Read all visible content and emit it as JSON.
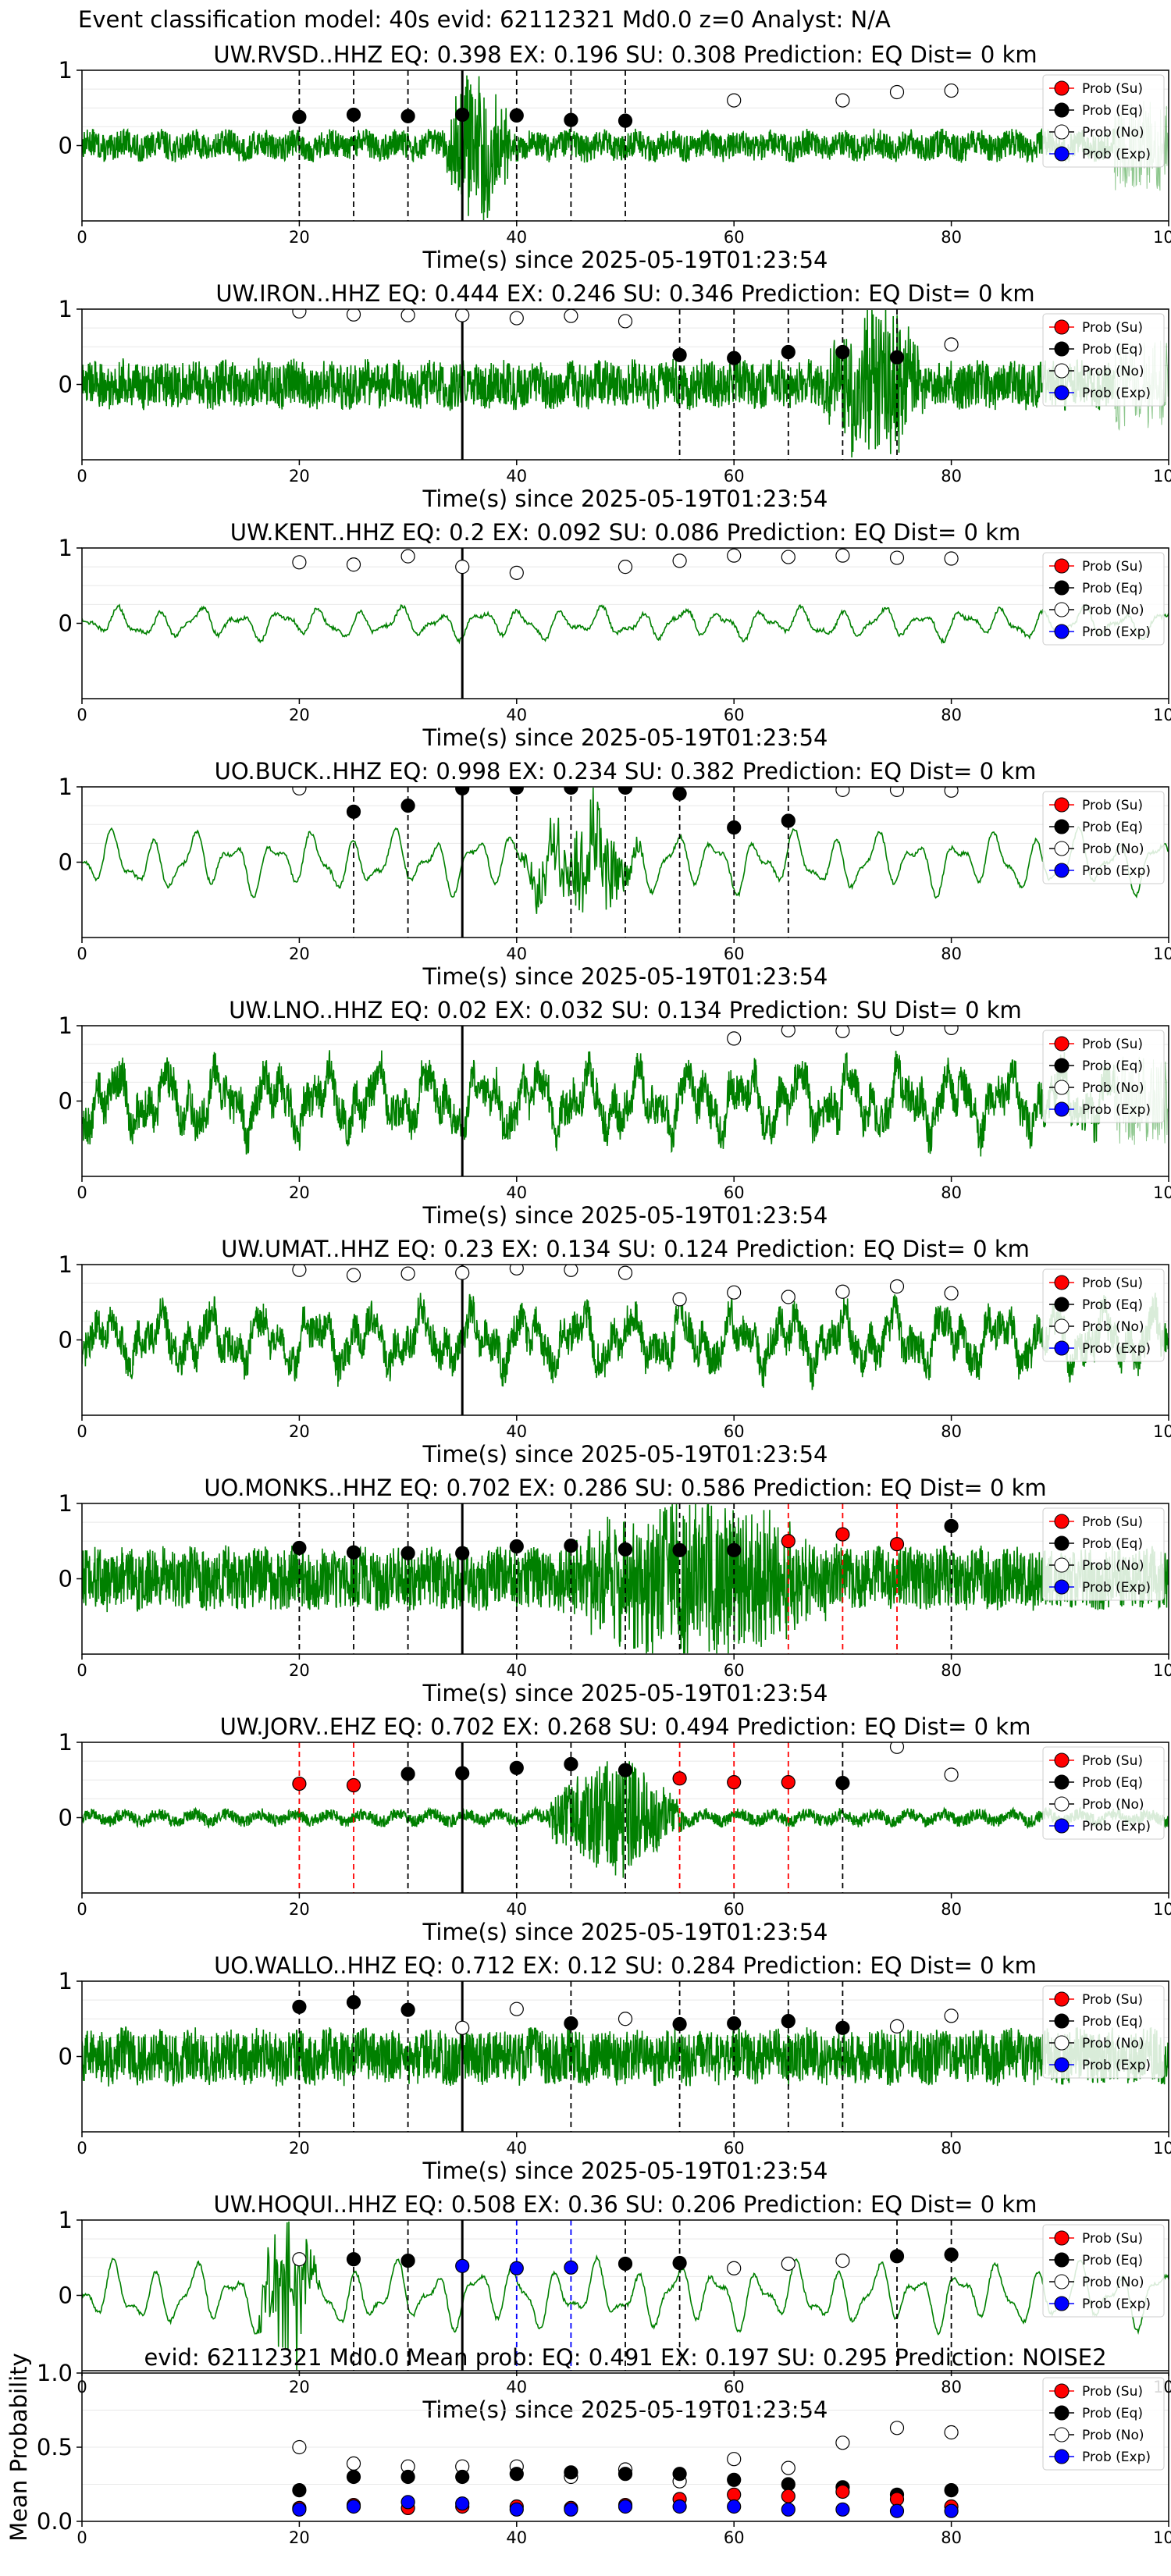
{
  "figure_title": "Event classification model: 40s evid: 62112321 Md0.0 z=0 Analyst: N/A",
  "legend_labels": [
    "Prob (Su)",
    "Prob (Eq)",
    "Prob (No)",
    "Prob (Exp)"
  ],
  "colors": {
    "waveform": "#008000",
    "su": "#ff0000",
    "eq": "#000000",
    "no": "#ffffff",
    "exp": "#0000ff",
    "pick_line": "#000000"
  },
  "chart_data": [
    {
      "type": "line",
      "title": "UW.RVSD..HHZ   EQ: 0.398  EX: 0.196  SU: 0.308   Prediction: EQ    Dist= 0 km",
      "xlabel": "Time(s) since 2025-05-19T01:23:54",
      "xlim": [
        0,
        100
      ],
      "ylim": [
        -1,
        1
      ],
      "xticks": [
        "0",
        "20",
        "40",
        "60",
        "80",
        "100"
      ],
      "yticks": [
        "1",
        "0"
      ],
      "grid": true,
      "legend_position": "upper-right",
      "pick_time": 35,
      "waveform": {
        "style": "noisy",
        "amplitude": 0.18,
        "burst_start": 33,
        "burst_end": 40,
        "burst_amplitude": 0.95,
        "noise_end": 95
      },
      "points": [
        {
          "x": 20,
          "y": 0.38,
          "class": "eq"
        },
        {
          "x": 25,
          "y": 0.41,
          "class": "eq"
        },
        {
          "x": 30,
          "y": 0.39,
          "class": "eq"
        },
        {
          "x": 35,
          "y": 0.41,
          "class": "eq"
        },
        {
          "x": 40,
          "y": 0.4,
          "class": "eq"
        },
        {
          "x": 45,
          "y": 0.34,
          "class": "eq"
        },
        {
          "x": 50,
          "y": 0.33,
          "class": "eq"
        },
        {
          "x": 60,
          "y": 0.6,
          "class": "no"
        },
        {
          "x": 70,
          "y": 0.6,
          "class": "no"
        },
        {
          "x": 75,
          "y": 0.71,
          "class": "no"
        },
        {
          "x": 80,
          "y": 0.73,
          "class": "no"
        }
      ]
    },
    {
      "type": "line",
      "title": "UW.IRON..HHZ   EQ: 0.444  EX: 0.246  SU: 0.346   Prediction: EQ    Dist= 0 km",
      "xlabel": "Time(s) since 2025-05-19T01:23:54",
      "xlim": [
        0,
        100
      ],
      "ylim": [
        -1,
        1
      ],
      "xticks": [
        "0",
        "20",
        "40",
        "60",
        "80",
        "100"
      ],
      "yticks": [
        "1",
        "0"
      ],
      "grid": true,
      "legend_position": "upper-right",
      "pick_time": 35,
      "waveform": {
        "style": "noisy",
        "amplitude": 0.3,
        "burst_start": 68,
        "burst_end": 78,
        "burst_amplitude": 0.9,
        "noise_end": 95
      },
      "points": [
        {
          "x": 20,
          "y": 0.97,
          "class": "no"
        },
        {
          "x": 25,
          "y": 0.93,
          "class": "no"
        },
        {
          "x": 30,
          "y": 0.92,
          "class": "no"
        },
        {
          "x": 35,
          "y": 0.92,
          "class": "no"
        },
        {
          "x": 40,
          "y": 0.88,
          "class": "no"
        },
        {
          "x": 45,
          "y": 0.91,
          "class": "no"
        },
        {
          "x": 50,
          "y": 0.84,
          "class": "no"
        },
        {
          "x": 55,
          "y": 0.39,
          "class": "eq"
        },
        {
          "x": 60,
          "y": 0.35,
          "class": "eq"
        },
        {
          "x": 65,
          "y": 0.43,
          "class": "eq"
        },
        {
          "x": 70,
          "y": 0.43,
          "class": "eq"
        },
        {
          "x": 75,
          "y": 0.36,
          "class": "eq"
        },
        {
          "x": 80,
          "y": 0.53,
          "class": "no"
        }
      ]
    },
    {
      "type": "line",
      "title": "UW.KENT..HHZ   EQ: 0.2  EX: 0.092  SU: 0.086   Prediction: EQ    Dist= 0 km",
      "xlabel": "Time(s) since 2025-05-19T01:23:54",
      "xlim": [
        0,
        100
      ],
      "ylim": [
        -1,
        1
      ],
      "xticks": [
        "0",
        "20",
        "40",
        "60",
        "80",
        "100"
      ],
      "yticks": [
        "1",
        "0"
      ],
      "grid": true,
      "legend_position": "upper-right",
      "pick_time": 35,
      "waveform": {
        "style": "smooth",
        "amplitude": 0.22,
        "burst_start": 0,
        "burst_end": 0,
        "burst_amplitude": 0,
        "noise_end": 100
      },
      "points": [
        {
          "x": 20,
          "y": 0.81,
          "class": "no"
        },
        {
          "x": 25,
          "y": 0.78,
          "class": "no"
        },
        {
          "x": 30,
          "y": 0.89,
          "class": "no"
        },
        {
          "x": 35,
          "y": 0.75,
          "class": "no"
        },
        {
          "x": 40,
          "y": 0.67,
          "class": "no"
        },
        {
          "x": 50,
          "y": 0.75,
          "class": "no"
        },
        {
          "x": 55,
          "y": 0.83,
          "class": "no"
        },
        {
          "x": 60,
          "y": 0.9,
          "class": "no"
        },
        {
          "x": 65,
          "y": 0.88,
          "class": "no"
        },
        {
          "x": 70,
          "y": 0.9,
          "class": "no"
        },
        {
          "x": 75,
          "y": 0.87,
          "class": "no"
        },
        {
          "x": 80,
          "y": 0.86,
          "class": "no"
        }
      ]
    },
    {
      "type": "line",
      "title": "UO.BUCK..HHZ   EQ: 0.998  EX: 0.234  SU: 0.382   Prediction: EQ    Dist= 0 km",
      "xlabel": "Time(s) since 2025-05-19T01:23:54",
      "xlim": [
        0,
        100
      ],
      "ylim": [
        -1,
        1
      ],
      "xticks": [
        "0",
        "20",
        "40",
        "60",
        "80",
        "100"
      ],
      "yticks": [
        "1",
        "0"
      ],
      "grid": true,
      "legend_position": "upper-right",
      "pick_time": 35,
      "waveform": {
        "style": "smooth",
        "amplitude": 0.42,
        "burst_start": 40,
        "burst_end": 52,
        "burst_amplitude": 0.6,
        "noise_end": 100
      },
      "points": [
        {
          "x": 20,
          "y": 0.98,
          "class": "no"
        },
        {
          "x": 25,
          "y": 0.67,
          "class": "eq"
        },
        {
          "x": 30,
          "y": 0.75,
          "class": "eq"
        },
        {
          "x": 35,
          "y": 0.98,
          "class": "eq"
        },
        {
          "x": 40,
          "y": 0.99,
          "class": "eq"
        },
        {
          "x": 45,
          "y": 0.99,
          "class": "eq"
        },
        {
          "x": 50,
          "y": 0.99,
          "class": "eq"
        },
        {
          "x": 55,
          "y": 0.91,
          "class": "eq"
        },
        {
          "x": 60,
          "y": 0.46,
          "class": "eq"
        },
        {
          "x": 65,
          "y": 0.55,
          "class": "eq"
        },
        {
          "x": 70,
          "y": 0.96,
          "class": "no"
        },
        {
          "x": 75,
          "y": 0.96,
          "class": "no"
        },
        {
          "x": 80,
          "y": 0.95,
          "class": "no"
        }
      ]
    },
    {
      "type": "line",
      "title": "UW.LNO..HHZ   EQ: 0.02  EX: 0.032  SU: 0.134   Prediction: SU    Dist= 0 km",
      "xlabel": "Time(s) since 2025-05-19T01:23:54",
      "xlim": [
        0,
        100
      ],
      "ylim": [
        -1,
        1
      ],
      "xticks": [
        "0",
        "20",
        "40",
        "60",
        "80",
        "100"
      ],
      "yticks": [
        "1",
        "0"
      ],
      "grid": true,
      "legend_position": "upper-right",
      "pick_time": 35,
      "waveform": {
        "style": "rough",
        "amplitude": 0.55,
        "burst_start": 0,
        "burst_end": 0,
        "burst_amplitude": 0,
        "noise_end": 95
      },
      "points": [
        {
          "x": 60,
          "y": 0.83,
          "class": "no"
        },
        {
          "x": 65,
          "y": 0.94,
          "class": "no"
        },
        {
          "x": 70,
          "y": 0.93,
          "class": "no"
        },
        {
          "x": 75,
          "y": 0.96,
          "class": "no"
        },
        {
          "x": 80,
          "y": 0.97,
          "class": "no"
        }
      ]
    },
    {
      "type": "line",
      "title": "UW.UMAT..HHZ   EQ: 0.23  EX: 0.134  SU: 0.124   Prediction: EQ    Dist= 0 km",
      "xlabel": "Time(s) since 2025-05-19T01:23:54",
      "xlim": [
        0,
        100
      ],
      "ylim": [
        -1,
        1
      ],
      "xticks": [
        "0",
        "20",
        "40",
        "60",
        "80",
        "100"
      ],
      "yticks": [
        "1",
        "0"
      ],
      "grid": true,
      "legend_position": "upper-right",
      "pick_time": 35,
      "waveform": {
        "style": "rough",
        "amplitude": 0.5,
        "burst_start": 0,
        "burst_end": 0,
        "burst_amplitude": 0,
        "noise_end": 100
      },
      "points": [
        {
          "x": 20,
          "y": 0.93,
          "class": "no"
        },
        {
          "x": 25,
          "y": 0.86,
          "class": "no"
        },
        {
          "x": 30,
          "y": 0.88,
          "class": "no"
        },
        {
          "x": 35,
          "y": 0.89,
          "class": "no"
        },
        {
          "x": 40,
          "y": 0.95,
          "class": "no"
        },
        {
          "x": 45,
          "y": 0.93,
          "class": "no"
        },
        {
          "x": 50,
          "y": 0.89,
          "class": "no"
        },
        {
          "x": 55,
          "y": 0.54,
          "class": "no"
        },
        {
          "x": 60,
          "y": 0.63,
          "class": "no"
        },
        {
          "x": 65,
          "y": 0.57,
          "class": "no"
        },
        {
          "x": 70,
          "y": 0.64,
          "class": "no"
        },
        {
          "x": 75,
          "y": 0.71,
          "class": "no"
        },
        {
          "x": 80,
          "y": 0.62,
          "class": "no"
        }
      ]
    },
    {
      "type": "line",
      "title": "UO.MONKS..HHZ   EQ: 0.702  EX: 0.286  SU: 0.586   Prediction: EQ    Dist= 0 km",
      "xlabel": "Time(s) since 2025-05-19T01:23:54",
      "xlim": [
        0,
        100
      ],
      "ylim": [
        -1,
        1
      ],
      "xticks": [
        "0",
        "20",
        "40",
        "60",
        "80",
        "100"
      ],
      "yticks": [
        "1",
        "0"
      ],
      "grid": true,
      "legend_position": "upper-right",
      "pick_time": 35,
      "waveform": {
        "style": "noisy",
        "amplitude": 0.4,
        "burst_start": 43,
        "burst_end": 70,
        "burst_amplitude": 0.85,
        "noise_end": 100
      },
      "points": [
        {
          "x": 20,
          "y": 0.41,
          "class": "eq"
        },
        {
          "x": 25,
          "y": 0.35,
          "class": "eq"
        },
        {
          "x": 30,
          "y": 0.34,
          "class": "eq"
        },
        {
          "x": 35,
          "y": 0.34,
          "class": "eq"
        },
        {
          "x": 40,
          "y": 0.43,
          "class": "eq"
        },
        {
          "x": 45,
          "y": 0.44,
          "class": "eq"
        },
        {
          "x": 50,
          "y": 0.39,
          "class": "eq"
        },
        {
          "x": 55,
          "y": 0.38,
          "class": "eq"
        },
        {
          "x": 60,
          "y": 0.38,
          "class": "eq"
        },
        {
          "x": 65,
          "y": 0.5,
          "class": "su"
        },
        {
          "x": 70,
          "y": 0.59,
          "class": "su"
        },
        {
          "x": 75,
          "y": 0.46,
          "class": "su"
        },
        {
          "x": 80,
          "y": 0.7,
          "class": "eq"
        }
      ]
    },
    {
      "type": "line",
      "title": "UW.JORV..EHZ   EQ: 0.702  EX: 0.268  SU: 0.494   Prediction: EQ    Dist= 0 km",
      "xlabel": "Time(s) since 2025-05-19T01:23:54",
      "xlim": [
        0,
        100
      ],
      "ylim": [
        -1,
        1
      ],
      "xticks": [
        "0",
        "20",
        "40",
        "60",
        "80",
        "100"
      ],
      "yticks": [
        "1",
        "0"
      ],
      "grid": true,
      "legend_position": "upper-right",
      "pick_time": 35,
      "waveform": {
        "style": "noisy",
        "amplitude": 0.08,
        "burst_start": 42,
        "burst_end": 56,
        "burst_amplitude": 0.75,
        "noise_end": 100
      },
      "points": [
        {
          "x": 20,
          "y": 0.45,
          "class": "su"
        },
        {
          "x": 25,
          "y": 0.43,
          "class": "su"
        },
        {
          "x": 30,
          "y": 0.58,
          "class": "eq"
        },
        {
          "x": 35,
          "y": 0.59,
          "class": "eq"
        },
        {
          "x": 40,
          "y": 0.66,
          "class": "eq"
        },
        {
          "x": 45,
          "y": 0.71,
          "class": "eq"
        },
        {
          "x": 50,
          "y": 0.63,
          "class": "eq"
        },
        {
          "x": 55,
          "y": 0.52,
          "class": "su"
        },
        {
          "x": 60,
          "y": 0.47,
          "class": "su"
        },
        {
          "x": 65,
          "y": 0.47,
          "class": "su"
        },
        {
          "x": 70,
          "y": 0.46,
          "class": "eq"
        },
        {
          "x": 75,
          "y": 0.94,
          "class": "no"
        },
        {
          "x": 80,
          "y": 0.57,
          "class": "no"
        }
      ]
    },
    {
      "type": "line",
      "title": "UO.WALLO..HHZ   EQ: 0.712  EX: 0.12  SU: 0.284   Prediction: EQ    Dist= 0 km",
      "xlabel": "Time(s) since 2025-05-19T01:23:54",
      "xlim": [
        0,
        100
      ],
      "ylim": [
        -1,
        1
      ],
      "xticks": [
        "0",
        "20",
        "40",
        "60",
        "80",
        "100"
      ],
      "yticks": [
        "1",
        "0"
      ],
      "grid": true,
      "legend_position": "upper-right",
      "pick_time": 35,
      "waveform": {
        "style": "noisy",
        "amplitude": 0.35,
        "burst_start": 0,
        "burst_end": 0,
        "burst_amplitude": 0,
        "noise_end": 100
      },
      "points": [
        {
          "x": 20,
          "y": 0.66,
          "class": "eq"
        },
        {
          "x": 25,
          "y": 0.72,
          "class": "eq"
        },
        {
          "x": 30,
          "y": 0.62,
          "class": "eq"
        },
        {
          "x": 35,
          "y": 0.38,
          "class": "no"
        },
        {
          "x": 40,
          "y": 0.63,
          "class": "no"
        },
        {
          "x": 45,
          "y": 0.44,
          "class": "eq"
        },
        {
          "x": 50,
          "y": 0.5,
          "class": "no"
        },
        {
          "x": 55,
          "y": 0.43,
          "class": "eq"
        },
        {
          "x": 60,
          "y": 0.44,
          "class": "eq"
        },
        {
          "x": 65,
          "y": 0.47,
          "class": "eq"
        },
        {
          "x": 70,
          "y": 0.38,
          "class": "eq"
        },
        {
          "x": 75,
          "y": 0.4,
          "class": "no"
        },
        {
          "x": 80,
          "y": 0.54,
          "class": "no"
        }
      ]
    },
    {
      "type": "line",
      "title": "UW.HOQUI..HHZ   EQ: 0.508  EX: 0.36  SU: 0.206   Prediction: EQ    Dist= 0 km",
      "xlabel": "Time(s) since 2025-05-19T01:23:54",
      "xlim": [
        0,
        100
      ],
      "ylim": [
        -1,
        1
      ],
      "xticks": [
        "0",
        "20",
        "40",
        "60",
        "80",
        "100"
      ],
      "yticks": [
        "1",
        "0"
      ],
      "grid": true,
      "legend_position": "upper-right",
      "pick_time": 35,
      "waveform": {
        "style": "smooth",
        "amplitude": 0.45,
        "burst_start": 16,
        "burst_end": 22,
        "burst_amplitude": 0.9,
        "noise_end": 100
      },
      "points": [
        {
          "x": 20,
          "y": 0.48,
          "class": "no"
        },
        {
          "x": 25,
          "y": 0.48,
          "class": "eq"
        },
        {
          "x": 30,
          "y": 0.46,
          "class": "eq"
        },
        {
          "x": 35,
          "y": 0.39,
          "class": "exp"
        },
        {
          "x": 40,
          "y": 0.36,
          "class": "exp"
        },
        {
          "x": 45,
          "y": 0.37,
          "class": "exp"
        },
        {
          "x": 50,
          "y": 0.42,
          "class": "eq"
        },
        {
          "x": 55,
          "y": 0.43,
          "class": "eq"
        },
        {
          "x": 60,
          "y": 0.36,
          "class": "no"
        },
        {
          "x": 65,
          "y": 0.42,
          "class": "no"
        },
        {
          "x": 70,
          "y": 0.46,
          "class": "no"
        },
        {
          "x": 75,
          "y": 0.52,
          "class": "eq"
        },
        {
          "x": 80,
          "y": 0.54,
          "class": "eq"
        }
      ]
    },
    {
      "type": "scatter",
      "title": "evid: 62112321  Md0.0   Mean prob:   EQ: 0.491  EX: 0.197  SU: 0.295   Prediction: NOISE2",
      "xlabel": "",
      "ylabel": "Mean Probability",
      "xlim": [
        0,
        100
      ],
      "ylim": [
        0,
        1
      ],
      "xticks": [
        "0",
        "20",
        "40",
        "60",
        "80",
        "100"
      ],
      "yticks": [
        "1.0",
        "0.5",
        "0.0"
      ],
      "grid": true,
      "legend_position": "upper-right",
      "x": [
        20,
        25,
        30,
        35,
        40,
        45,
        50,
        55,
        60,
        65,
        70,
        75,
        80
      ],
      "series": [
        {
          "class": "no",
          "values": [
            0.5,
            0.39,
            0.37,
            0.37,
            0.37,
            0.3,
            0.35,
            0.27,
            0.42,
            0.36,
            0.53,
            0.63,
            0.6
          ]
        },
        {
          "class": "eq",
          "values": [
            0.21,
            0.3,
            0.3,
            0.3,
            0.32,
            0.33,
            0.32,
            0.32,
            0.28,
            0.25,
            0.23,
            0.18,
            0.21
          ]
        },
        {
          "class": "su",
          "values": [
            0.09,
            0.11,
            0.09,
            0.1,
            0.1,
            0.09,
            0.11,
            0.15,
            0.18,
            0.17,
            0.2,
            0.15,
            0.1
          ]
        },
        {
          "class": "exp",
          "values": [
            0.08,
            0.1,
            0.13,
            0.12,
            0.08,
            0.08,
            0.1,
            0.1,
            0.1,
            0.08,
            0.08,
            0.07,
            0.07
          ]
        }
      ]
    }
  ]
}
